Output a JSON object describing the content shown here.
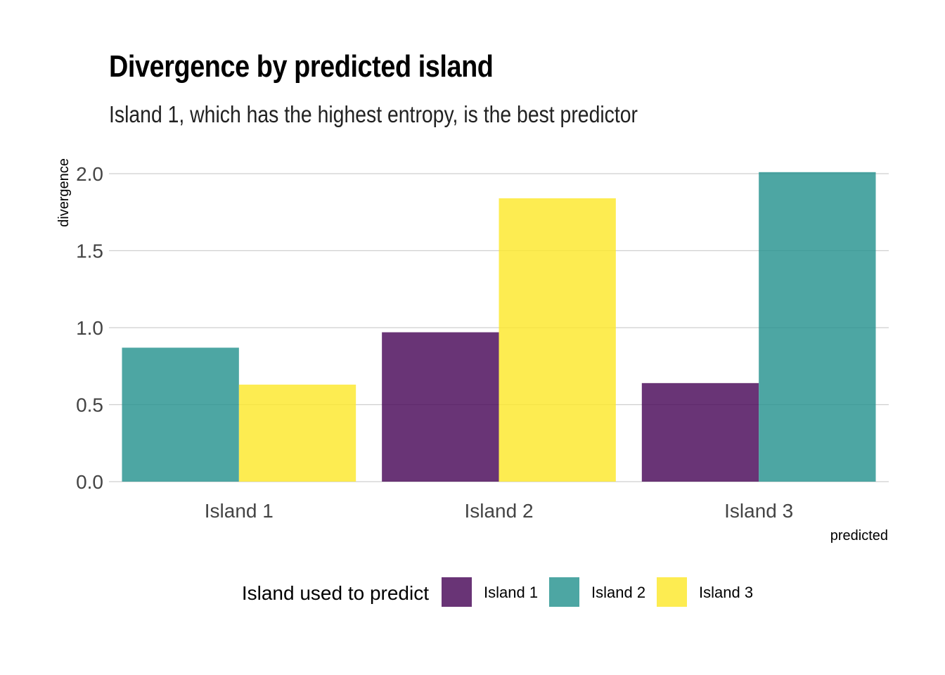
{
  "chart_data": {
    "type": "bar",
    "title": "Divergence by predicted island",
    "subtitle": "Island 1, which has the highest entropy, is the best predictor",
    "xlabel": "predicted",
    "ylabel": "divergence",
    "categories": [
      "Island 1",
      "Island 2",
      "Island 3"
    ],
    "ylim": [
      0,
      2
    ],
    "yticks": [
      "0.0",
      "0.5",
      "1.0",
      "1.5",
      "2.0"
    ],
    "grid": true,
    "legend_title": "Island used to predict",
    "legend_position": "bottom",
    "series": [
      {
        "name": "Island 1",
        "color": "#440154",
        "values": [
          null,
          0.97,
          0.64
        ]
      },
      {
        "name": "Island 2",
        "color": "#21908C",
        "values": [
          0.87,
          null,
          2.01
        ]
      },
      {
        "name": "Island 3",
        "color": "#FDE725",
        "values": [
          0.63,
          1.84,
          null
        ]
      }
    ]
  }
}
